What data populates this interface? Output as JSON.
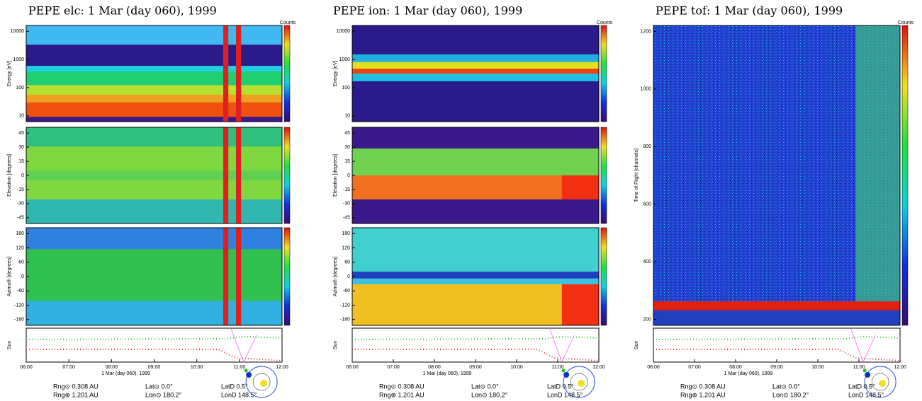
{
  "columns": [
    {
      "title": "PEPE elc:  1 Mar (day 060), 1999",
      "panels": [
        {
          "ylabel": "Energy [eV]",
          "yticks": [
            "10000",
            "1000",
            "100",
            "10"
          ],
          "colorbar_label": "Counts"
        },
        {
          "ylabel": "Elevation [degrees]",
          "yticks": [
            "45",
            "30",
            "15",
            "0",
            "-15",
            "-30",
            "-45"
          ]
        },
        {
          "ylabel": "Azimuth [degrees]",
          "yticks": [
            "180",
            "120",
            "60",
            "0",
            "-60",
            "-120",
            "-180"
          ]
        }
      ],
      "sun_ylabel": "Sun",
      "xticks": [
        "06:00",
        "07:00",
        "08:00",
        "09:00",
        "10:00",
        "11:00",
        "12:00"
      ],
      "xlabel": "1 Mar (day 060), 1999",
      "footer": [
        "Rng⊙ 0.308 AU",
        "Rng⊕ 1.201 AU",
        "Lat⊙ 0.0°",
        "Lon⊙ 180.2°",
        "LatD 0.5°",
        "LonD 148.5°"
      ]
    },
    {
      "title": "PEPE ion:  1 Mar (day 060), 1999",
      "panels": [
        {
          "ylabel": "Energy [eV]",
          "yticks": [
            "10000",
            "1000",
            "100",
            "10"
          ],
          "colorbar_label": "Counts"
        },
        {
          "ylabel": "Elevation [degrees]",
          "yticks": [
            "45",
            "30",
            "15",
            "0",
            "-15",
            "-30",
            "-45"
          ]
        },
        {
          "ylabel": "Azimuth [degrees]",
          "yticks": [
            "180",
            "120",
            "60",
            "0",
            "-60",
            "-120",
            "-180"
          ]
        }
      ],
      "sun_ylabel": "Sun",
      "xticks": [
        "06:00",
        "07:00",
        "08:00",
        "09:00",
        "10:00",
        "11:00",
        "12:00"
      ],
      "xlabel": "1 Mar (day 060), 1999",
      "footer": [
        "Rng⊙ 0.308 AU",
        "Rng⊕ 1.201 AU",
        "Lat⊙ 0.0°",
        "Lon⊙ 180.2°",
        "LatD 0.5°",
        "LonD 148.5°"
      ]
    },
    {
      "title": "PEPE tof:  1 Mar (day 060), 1999",
      "panels": [
        {
          "ylabel": "Time of Flight [channels]",
          "yticks": [
            "1200",
            "1000",
            "800",
            "600",
            "400",
            "200"
          ],
          "colorbar_label": "Counts"
        }
      ],
      "sun_ylabel": "Sun",
      "xticks": [
        "06:00",
        "07:00",
        "08:00",
        "09:00",
        "10:00",
        "11:00",
        "12:00"
      ],
      "xlabel": "1 Mar (day 060), 1999",
      "footer": [
        "Rng⊙ 0.308 AU",
        "Rng⊕ 1.201 AU",
        "Lat⊙ 0.0°",
        "Lon⊙ 180.2°",
        "LatD 0.5°",
        "LonD 148.5°"
      ]
    }
  ]
}
